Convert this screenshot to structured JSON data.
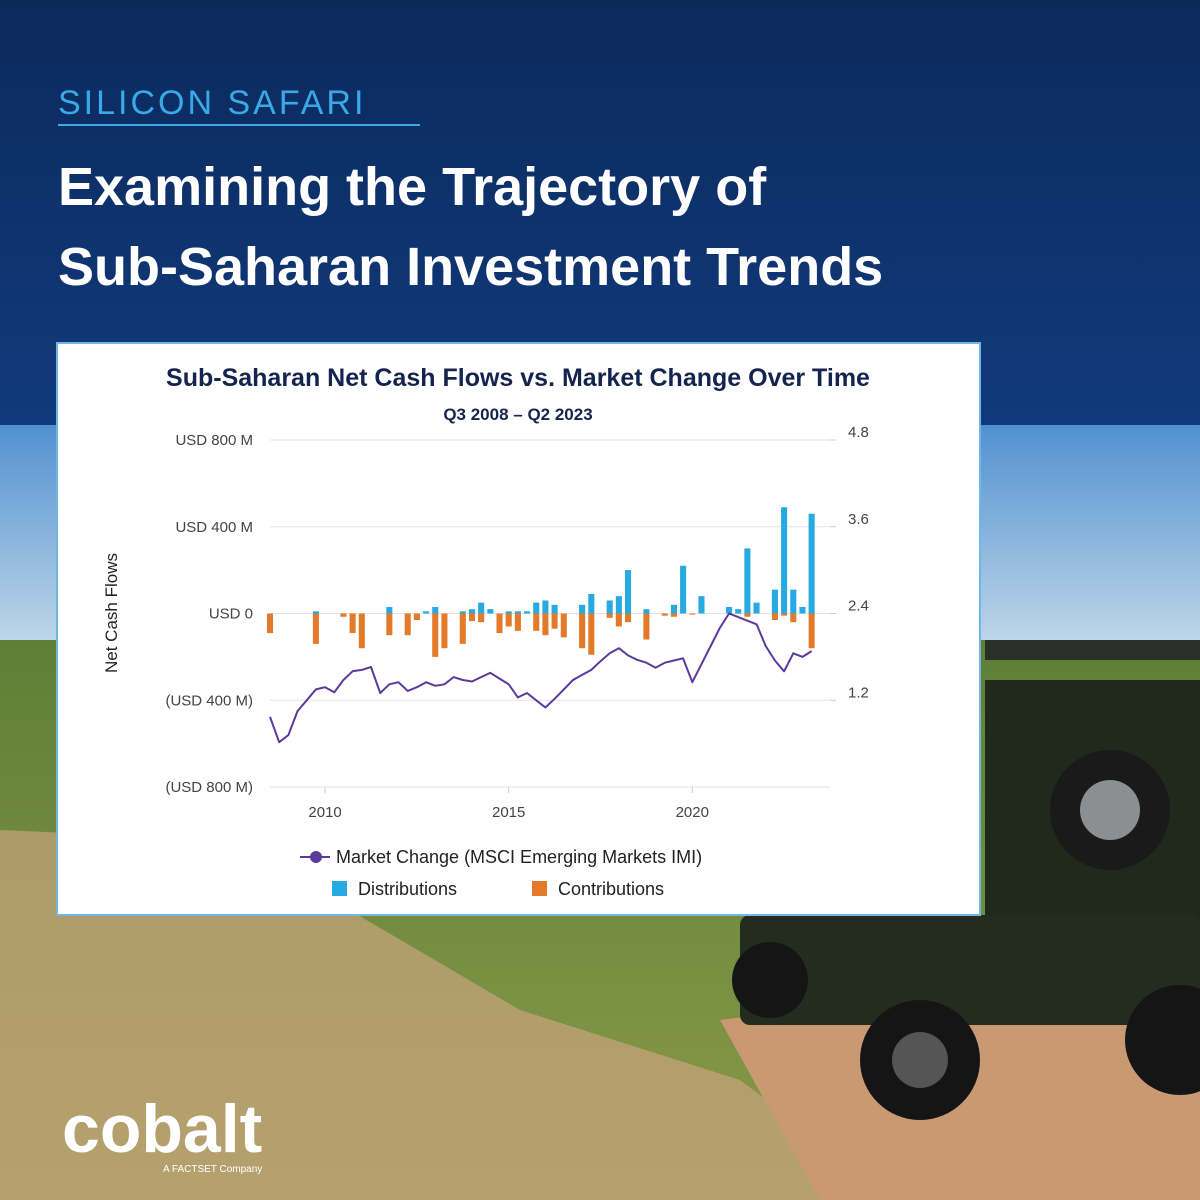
{
  "header": {
    "kicker": "SILICON SAFARI",
    "title_lines": [
      "Examining the Trajectory of",
      "Sub-Saharan Investment Trends"
    ]
  },
  "brand": {
    "logo": "cobalt",
    "tagline": "A FACTSET Company"
  },
  "chart_data": {
    "type": "bar",
    "title": "Sub-Saharan Net Cash Flows vs. Market Change Over Time",
    "subtitle": "Q3 2008 – Q2 2023",
    "y_label": "Net Cash Flows",
    "x": [
      2008.5,
      2008.75,
      2009,
      2009.25,
      2009.5,
      2009.75,
      2010,
      2010.25,
      2010.5,
      2010.75,
      2011,
      2011.25,
      2011.5,
      2011.75,
      2012,
      2012.25,
      2012.5,
      2012.75,
      2013,
      2013.25,
      2013.5,
      2013.75,
      2014,
      2014.25,
      2014.5,
      2014.75,
      2015,
      2015.25,
      2015.5,
      2015.75,
      2016,
      2016.25,
      2016.5,
      2016.75,
      2017,
      2017.25,
      2017.5,
      2017.75,
      2018,
      2018.25,
      2018.5,
      2018.75,
      2019,
      2019.25,
      2019.5,
      2019.75,
      2020,
      2020.25,
      2020.5,
      2020.75,
      2021,
      2021.25,
      2021.5,
      2021.75,
      2022,
      2022.25,
      2022.5,
      2022.75,
      2023,
      2023.25
    ],
    "xlim": [
      2008.5,
      2023.75
    ],
    "xticks": [
      2010,
      2015,
      2020
    ],
    "ylim": [
      -800,
      800
    ],
    "yticks": [
      {
        "value": -800,
        "label": "(USD 800 M)"
      },
      {
        "value": -400,
        "label": "(USD 400 M)"
      },
      {
        "value": 0,
        "label": "USD 0"
      },
      {
        "value": 400,
        "label": "USD 400 M"
      },
      {
        "value": 800,
        "label": "USD 800 M"
      }
    ],
    "y2lim": [
      0,
      4.8
    ],
    "y2ticks": [
      1.2,
      2.4,
      3.6,
      4.8
    ],
    "grid": true,
    "series": [
      {
        "name": "Distributions",
        "color": "#27a9e1",
        "values": [
          0,
          0,
          0,
          0,
          0,
          10,
          0,
          0,
          0,
          0,
          0,
          0,
          0,
          30,
          0,
          0,
          0,
          10,
          30,
          0,
          0,
          10,
          20,
          50,
          20,
          0,
          10,
          10,
          10,
          50,
          60,
          40,
          0,
          0,
          40,
          90,
          0,
          60,
          80,
          200,
          0,
          20,
          0,
          0,
          40,
          220,
          0,
          80,
          0,
          0,
          30,
          20,
          300,
          50,
          0,
          110,
          490,
          110,
          30,
          460
        ]
      },
      {
        "name": "Contributions",
        "color": "#e37a2a",
        "values": [
          -90,
          0,
          0,
          0,
          0,
          -140,
          0,
          0,
          -15,
          -90,
          -160,
          0,
          0,
          -100,
          0,
          -100,
          -30,
          0,
          -200,
          -160,
          0,
          -140,
          -35,
          -40,
          0,
          -90,
          -60,
          -80,
          0,
          -80,
          -100,
          -70,
          -110,
          0,
          -160,
          -190,
          0,
          -20,
          -60,
          -40,
          0,
          -120,
          0,
          -10,
          -15,
          0,
          -5,
          0,
          0,
          0,
          0,
          0,
          -15,
          0,
          0,
          -30,
          -10,
          -40,
          0,
          -160
        ]
      },
      {
        "name": "Market Change (MSCI Emerging Markets IMI)",
        "color": "#5a3a9a",
        "type": "line",
        "axis": "y2",
        "values": [
          0.97,
          0.62,
          0.72,
          1.05,
          1.2,
          1.35,
          1.38,
          1.31,
          1.48,
          1.6,
          1.62,
          1.66,
          1.3,
          1.42,
          1.45,
          1.33,
          1.38,
          1.45,
          1.4,
          1.42,
          1.52,
          1.48,
          1.46,
          1.52,
          1.58,
          1.5,
          1.42,
          1.24,
          1.3,
          1.2,
          1.1,
          1.22,
          1.35,
          1.48,
          1.55,
          1.62,
          1.74,
          1.85,
          1.92,
          1.82,
          1.76,
          1.72,
          1.65,
          1.72,
          1.75,
          1.78,
          1.45,
          1.7,
          1.95,
          2.2,
          2.4,
          2.35,
          2.3,
          2.25,
          1.95,
          1.75,
          1.6,
          1.85,
          1.8,
          1.88
        ]
      }
    ]
  }
}
